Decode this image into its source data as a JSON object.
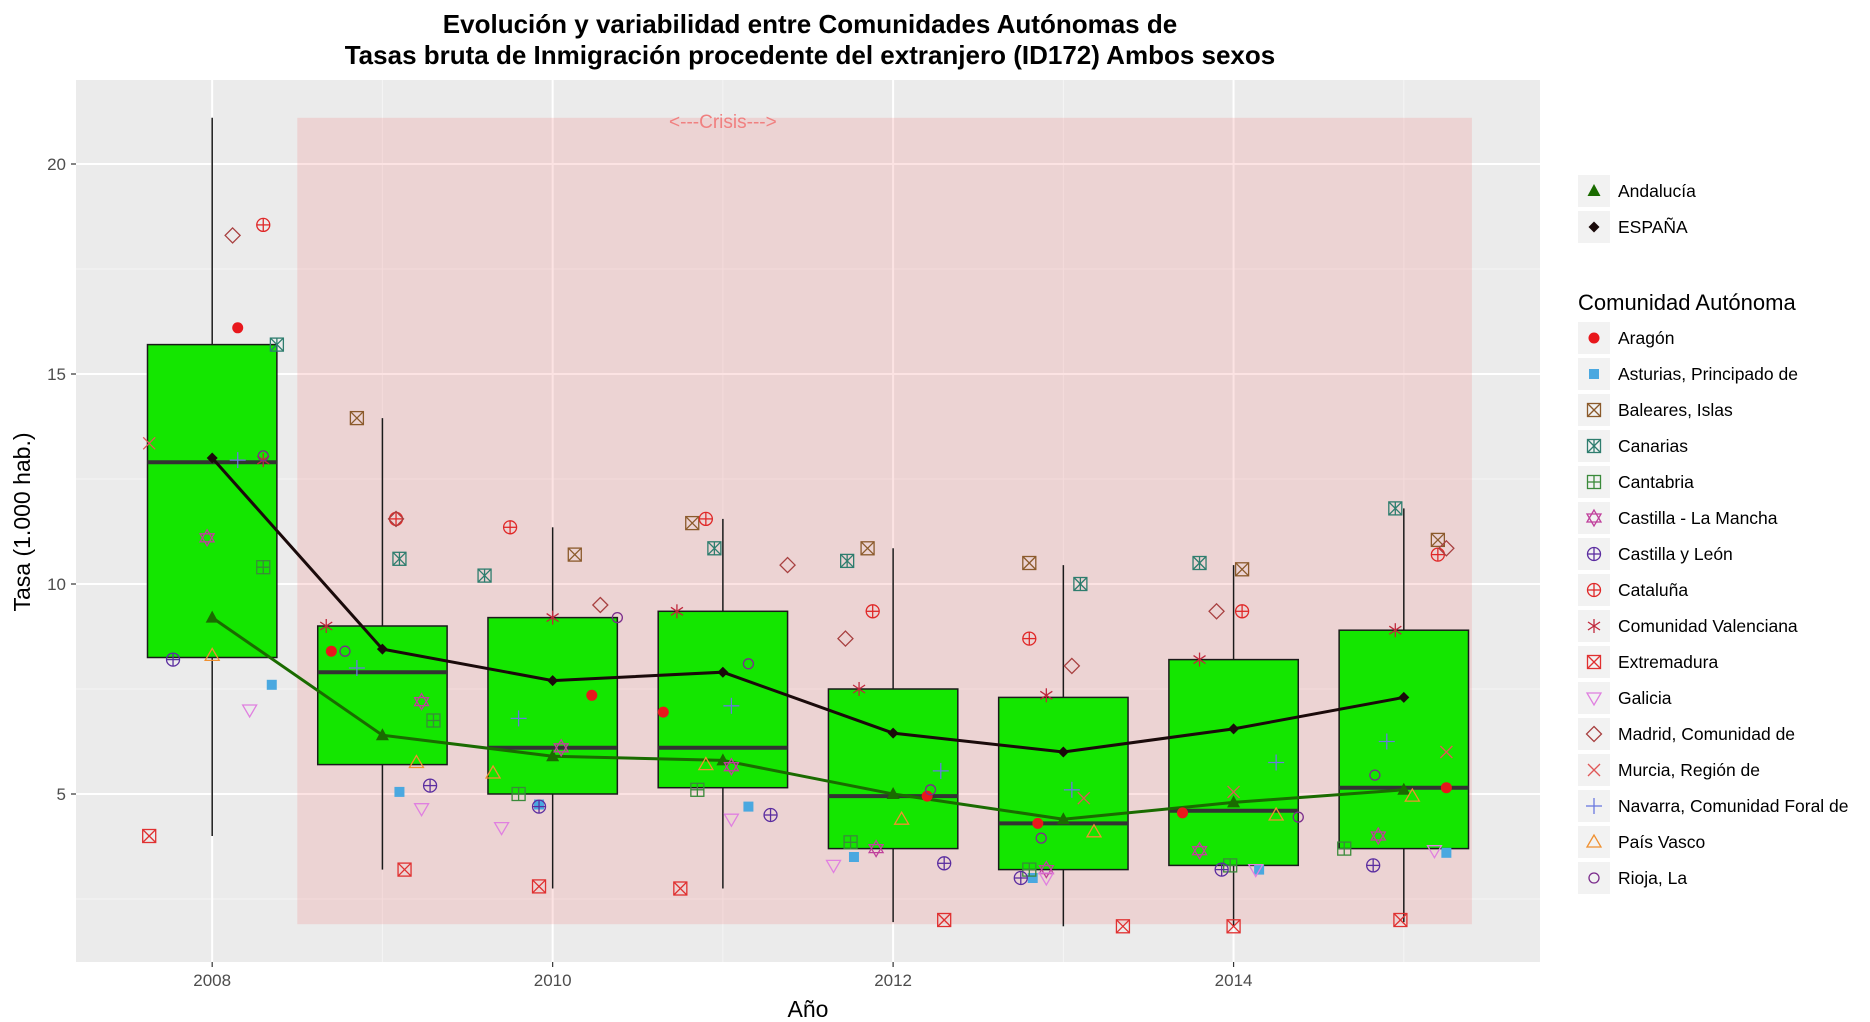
{
  "chart_data": {
    "type": "boxplot",
    "title": "Evolución y variabilidad entre Comunidades Autónomas de",
    "subtitle": "Tasas bruta de Inmigración procedente del extranjero (ID172) Ambos sexos",
    "xlabel": "Año",
    "ylabel": "Tasa (1.000 hab.)",
    "xlim": [
      2007.2,
      2015.8
    ],
    "ylim": [
      1.0,
      22.0
    ],
    "x_ticks": [
      2008,
      2010,
      2012,
      2014
    ],
    "x_tick_labels": [
      "2008",
      "2010",
      "2012",
      "2014"
    ],
    "y_ticks": [
      5,
      10,
      15,
      20
    ],
    "y_tick_labels": [
      "5",
      "10",
      "15",
      "20"
    ],
    "grid": true,
    "annotation": {
      "text": "<---Crisis--->",
      "x": 2011.0,
      "y": 21.0,
      "x_from": 2008.5,
      "x_to": 2015.4,
      "y_from": 1.9,
      "y_to": 21.1,
      "color": "#f08080"
    },
    "boxes": [
      {
        "x": 2008,
        "whisker_low": 4.0,
        "q1": 8.25,
        "median": 12.9,
        "q3": 15.7,
        "whisker_high": 21.1
      },
      {
        "x": 2009,
        "whisker_low": 3.2,
        "q1": 5.7,
        "median": 7.9,
        "q3": 9.0,
        "whisker_high": 13.95
      },
      {
        "x": 2010,
        "whisker_low": 2.75,
        "q1": 5.0,
        "median": 6.1,
        "q3": 9.2,
        "whisker_high": 11.35
      },
      {
        "x": 2011,
        "whisker_low": 2.75,
        "q1": 5.15,
        "median": 6.1,
        "q3": 9.35,
        "whisker_high": 11.55
      },
      {
        "x": 2012,
        "whisker_low": 1.95,
        "q1": 3.7,
        "median": 4.95,
        "q3": 7.5,
        "whisker_high": 10.85
      },
      {
        "x": 2013,
        "whisker_low": 1.85,
        "q1": 3.2,
        "median": 4.3,
        "q3": 7.3,
        "whisker_high": 10.45
      },
      {
        "x": 2014,
        "whisker_low": 1.85,
        "q1": 3.3,
        "median": 4.6,
        "q3": 8.2,
        "whisker_high": 10.45
      },
      {
        "x": 2015,
        "whisker_low": 1.95,
        "q1": 3.7,
        "median": 5.15,
        "q3": 8.9,
        "whisker_high": 11.8
      }
    ],
    "box_color": "#14e600",
    "x": [
      2008,
      2009,
      2010,
      2011,
      2012,
      2013,
      2014,
      2015
    ],
    "legend": {
      "placement": "right",
      "reference_entries": [
        "Andalucía",
        "ESPAÑA"
      ],
      "title": "Comunidad Autónoma",
      "entries": [
        "Aragón",
        "Asturias, Principado de",
        "Baleares, Islas",
        "Canarias",
        "Cantabria",
        "Castilla - La Mancha",
        "Castilla y León",
        "Cataluña",
        "Comunidad Valenciana",
        "Extremadura",
        "Galicia",
        "Madrid, Comunidad de",
        "Murcia, Región de",
        "Navarra, Comunidad Foral de",
        "País Vasco",
        "Rioja, La"
      ]
    },
    "series": [
      {
        "name": "Andalucía",
        "kind": "line",
        "shape": "triangle",
        "color": "#1a6b00",
        "values": [
          9.2,
          6.4,
          5.9,
          5.8,
          5.0,
          4.4,
          4.8,
          5.1
        ]
      },
      {
        "name": "ESPAÑA",
        "kind": "line",
        "shape": "diamond",
        "color": "#1a0a0a",
        "values": [
          13.0,
          8.45,
          7.7,
          7.9,
          6.45,
          6.0,
          6.55,
          7.3
        ]
      },
      {
        "name": "Aragón",
        "kind": "points",
        "shape": "dot",
        "color": "#e8171c",
        "values": [
          16.1,
          8.4,
          7.35,
          6.95,
          4.95,
          4.3,
          4.55,
          5.15
        ],
        "jitter": [
          0.15,
          -0.3,
          0.23,
          -0.35,
          0.2,
          -0.15,
          -0.3,
          0.25
        ]
      },
      {
        "name": "Asturias, Principado de",
        "kind": "points",
        "shape": "square",
        "color": "#4aa8e0",
        "values": [
          7.6,
          5.05,
          4.75,
          4.7,
          3.5,
          3.0,
          3.2,
          3.6
        ],
        "jitter": [
          0.35,
          0.1,
          -0.08,
          0.15,
          -0.23,
          -0.18,
          0.15,
          0.25
        ]
      },
      {
        "name": "Baleares, Islas",
        "kind": "points",
        "shape": "box-x",
        "color": "#8b5a2b",
        "values": [
          null,
          13.95,
          10.7,
          11.45,
          10.85,
          10.5,
          10.35,
          11.05
        ],
        "jitter": [
          0,
          -0.15,
          0.13,
          -0.18,
          -0.15,
          -0.2,
          0.05,
          0.2
        ]
      },
      {
        "name": "Canarias",
        "kind": "points",
        "shape": "box-xcross",
        "color": "#2e7d6e",
        "values": [
          15.7,
          10.6,
          10.2,
          10.85,
          10.55,
          10.0,
          10.5,
          11.8
        ],
        "jitter": [
          0.38,
          0.1,
          -0.4,
          -0.05,
          -0.27,
          0.1,
          -0.2,
          -0.05
        ]
      },
      {
        "name": "Cantabria",
        "kind": "points",
        "shape": "box-plus",
        "color": "#3a8a3a",
        "values": [
          10.4,
          6.75,
          5.0,
          5.1,
          3.85,
          3.2,
          3.3,
          3.7
        ],
        "jitter": [
          0.3,
          0.3,
          -0.2,
          -0.15,
          -0.25,
          -0.2,
          -0.02,
          -0.35
        ]
      },
      {
        "name": "Castilla - La Mancha",
        "kind": "points",
        "shape": "star6",
        "color": "#c0409c",
        "values": [
          11.1,
          7.2,
          6.1,
          5.65,
          3.7,
          3.2,
          3.65,
          4.0
        ],
        "jitter": [
          -0.03,
          0.23,
          0.05,
          0.05,
          -0.1,
          -0.1,
          -0.2,
          -0.15
        ]
      },
      {
        "name": "Castilla y León",
        "kind": "points",
        "shape": "circle-plus",
        "color": "#5b2da0",
        "values": [
          8.2,
          5.2,
          4.7,
          4.5,
          3.35,
          3.0,
          3.2,
          3.3
        ],
        "jitter": [
          -0.23,
          0.28,
          -0.08,
          0.28,
          0.3,
          -0.25,
          -0.07,
          -0.18
        ]
      },
      {
        "name": "Cataluña",
        "kind": "points",
        "shape": "circle-plus",
        "color": "#e02828",
        "values": [
          18.55,
          11.55,
          11.35,
          11.55,
          9.35,
          8.7,
          9.35,
          10.7
        ],
        "jitter": [
          0.3,
          0.08,
          -0.25,
          -0.1,
          -0.12,
          -0.2,
          0.05,
          0.2
        ]
      },
      {
        "name": "Comunidad Valenciana",
        "kind": "points",
        "shape": "asterisk",
        "color": "#c0283c",
        "values": [
          12.95,
          9.0,
          9.2,
          9.35,
          7.5,
          7.35,
          8.2,
          8.9
        ],
        "jitter": [
          0.3,
          -0.33,
          0.0,
          -0.27,
          -0.2,
          -0.1,
          -0.2,
          -0.05
        ]
      },
      {
        "name": "Extremadura",
        "kind": "points",
        "shape": "box-x",
        "color": "#e03030",
        "values": [
          4.0,
          3.2,
          2.8,
          2.75,
          2.0,
          1.85,
          1.85,
          2.0
        ],
        "jitter": [
          -0.37,
          0.13,
          -0.08,
          -0.25,
          0.3,
          0.35,
          0.0,
          -0.02
        ]
      },
      {
        "name": "Galicia",
        "kind": "points",
        "shape": "triangle-down",
        "color": "#e080e0",
        "values": [
          7.0,
          4.65,
          4.2,
          4.4,
          3.3,
          3.0,
          3.2,
          3.65
        ],
        "jitter": [
          0.22,
          0.23,
          -0.3,
          0.05,
          -0.35,
          -0.1,
          0.13,
          0.18
        ]
      },
      {
        "name": "Madrid, Comunidad de",
        "kind": "points",
        "shape": "diamond-open",
        "color": "#a84040",
        "values": [
          18.3,
          11.55,
          9.5,
          10.45,
          8.7,
          8.05,
          9.35,
          10.85
        ],
        "jitter": [
          0.12,
          0.08,
          0.28,
          0.38,
          -0.28,
          0.05,
          -0.1,
          0.25
        ]
      },
      {
        "name": "Murcia, Región de",
        "kind": "points",
        "shape": "cross",
        "color": "#e05858",
        "values": [
          13.35,
          null,
          null,
          null,
          null,
          4.9,
          5.05,
          6.0
        ],
        "jitter": [
          -0.37,
          0,
          0,
          0,
          0,
          0.12,
          0.0,
          0.25
        ]
      },
      {
        "name": "Navarra, Comunidad Foral de",
        "kind": "points",
        "shape": "plus",
        "color": "#6a78e0",
        "values": [
          12.95,
          8.0,
          6.8,
          7.1,
          5.55,
          5.1,
          5.75,
          6.25
        ],
        "jitter": [
          0.15,
          -0.15,
          -0.2,
          0.05,
          0.28,
          0.05,
          0.25,
          -0.1
        ]
      },
      {
        "name": "País Vasco",
        "kind": "points",
        "shape": "triangle-open",
        "color": "#f09030",
        "values": [
          8.3,
          5.75,
          5.5,
          5.7,
          4.4,
          4.1,
          4.5,
          4.95
        ],
        "jitter": [
          0.0,
          0.2,
          -0.35,
          -0.1,
          0.05,
          0.18,
          0.25,
          0.05
        ]
      },
      {
        "name": "Rioja, La",
        "kind": "points",
        "shape": "circle-open",
        "color": "#7b2c8c",
        "values": [
          13.05,
          8.4,
          9.2,
          8.1,
          5.1,
          3.95,
          4.45,
          5.45
        ],
        "jitter": [
          0.3,
          -0.22,
          0.38,
          0.15,
          0.22,
          -0.13,
          0.38,
          -0.17
        ]
      }
    ]
  }
}
